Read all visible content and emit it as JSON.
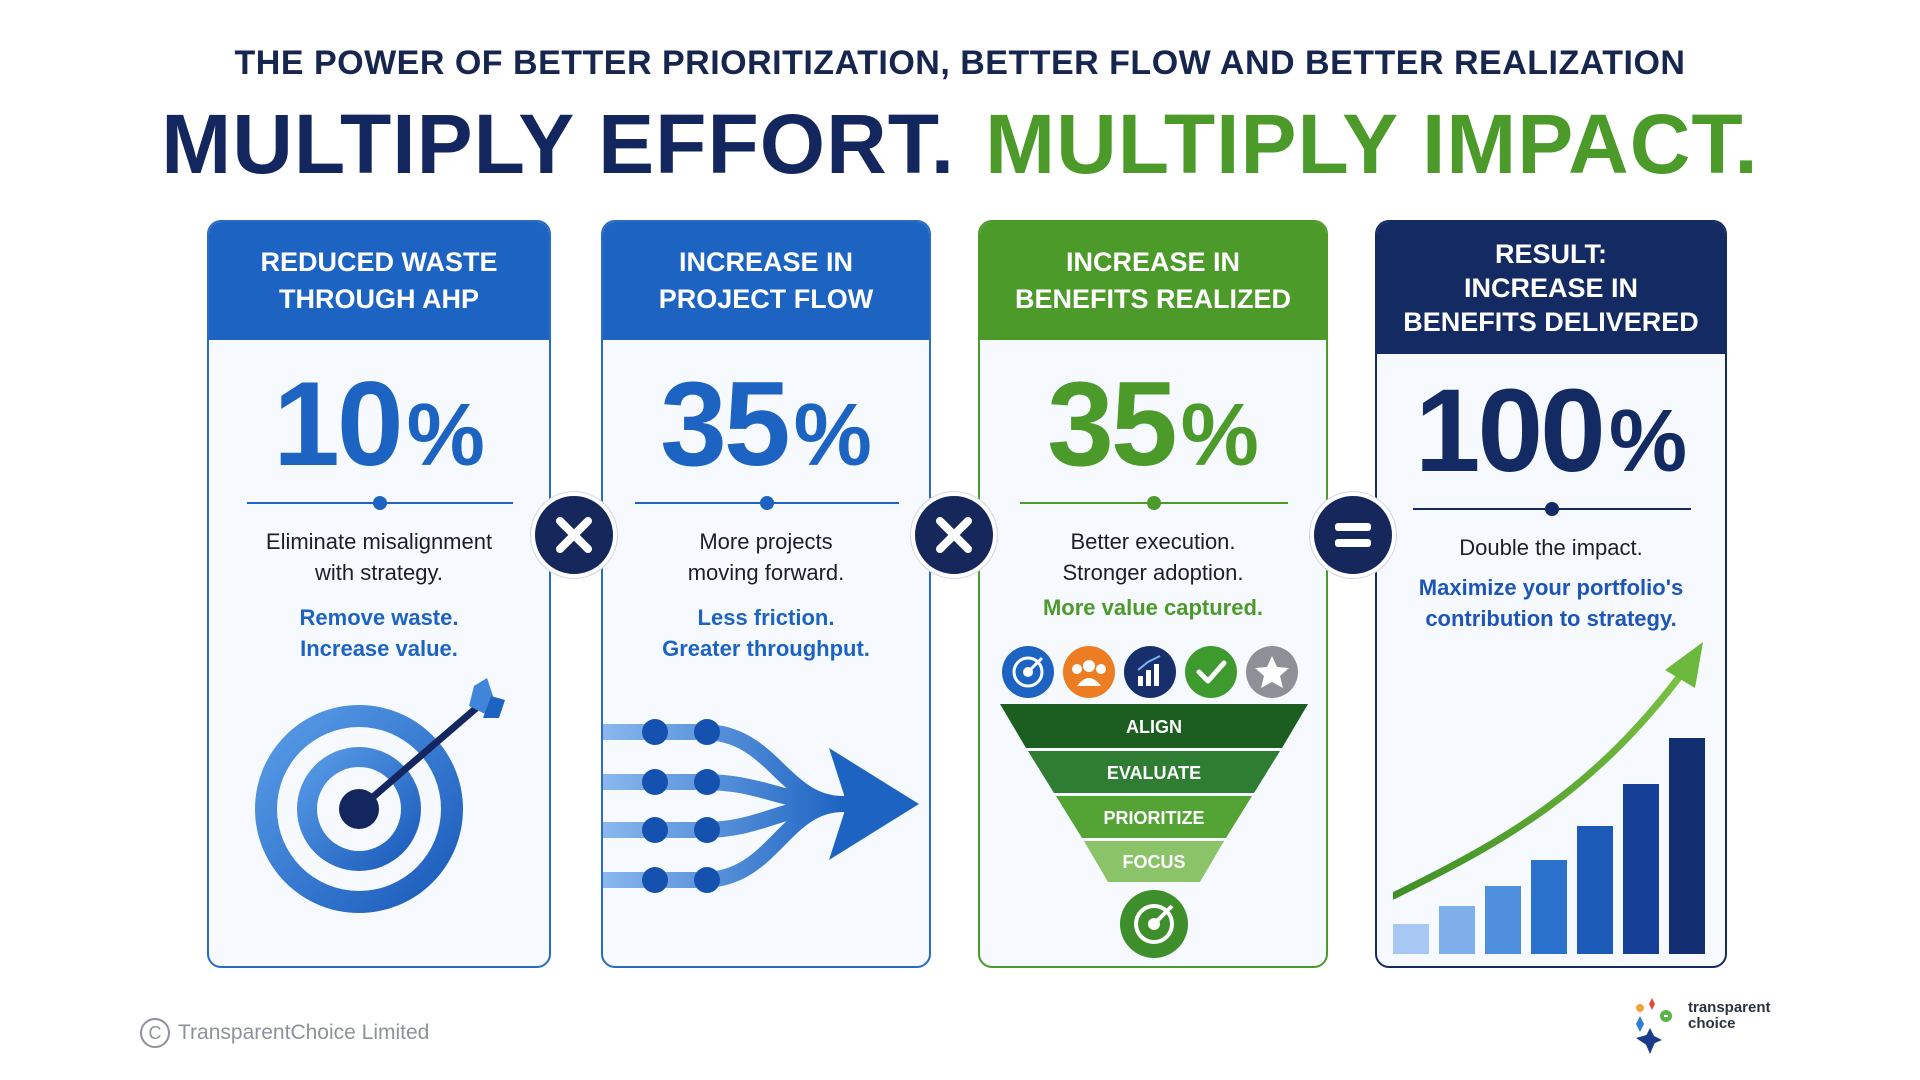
{
  "header": {
    "subtitle": "THE POWER OF BETTER PRIORITIZATION, BETTER FLOW AND BETTER REALIZATION",
    "headline_part1": "MULTIPLY EFFORT.",
    "headline_part2": "MULTIPLY IMPACT."
  },
  "colors": {
    "navy": "#14265e",
    "blue": "#1d64c2",
    "green": "#4c9a2a",
    "dark_navy_card": "#132a63"
  },
  "cards": [
    {
      "header_line1": "REDUCED WASTE",
      "header_line2": "THROUGH AHP",
      "number": "10",
      "unit": "%",
      "text_line1": "Eliminate misalignment",
      "text_line2": "with strategy.",
      "accent_line1": "Remove waste.",
      "accent_line2": "Increase value.",
      "icon": "target-icon"
    },
    {
      "header_line1": "INCREASE IN",
      "header_line2": "PROJECT FLOW",
      "number": "35",
      "unit": "%",
      "text_line1": "More projects",
      "text_line2": "moving forward.",
      "accent_line1": "Less friction.",
      "accent_line2": "Greater throughput.",
      "icon": "flow-arrows-icon"
    },
    {
      "header_line1": "INCREASE IN",
      "header_line2": "BENEFITS REALIZED",
      "number": "35",
      "unit": "%",
      "text_line1": "Better execution.",
      "text_line2": "Stronger adoption.",
      "accent_line1": "More value captured.",
      "icons": [
        "target-icon",
        "team-icon",
        "chart-icon",
        "check-icon",
        "star-icon"
      ],
      "funnel": [
        "ALIGN",
        "EVALUATE",
        "PRIORITIZE",
        "FOCUS"
      ]
    },
    {
      "header_line1": "RESULT:",
      "header_line2": "INCREASE IN",
      "header_line3": "BENEFITS DELIVERED",
      "number": "100",
      "unit": "%",
      "text_line1": "Double the impact.",
      "accent_line1": "Maximize your portfolio's",
      "accent_line2": "contribution to strategy.",
      "icon": "growth-chart-icon"
    }
  ],
  "operators": [
    "multiply-icon",
    "multiply-icon",
    "equals-icon"
  ],
  "footer": {
    "copyright_symbol": "C",
    "copyright": "TransparentChoice Limited",
    "brand_line1": "transparent",
    "brand_line2": "choice"
  }
}
